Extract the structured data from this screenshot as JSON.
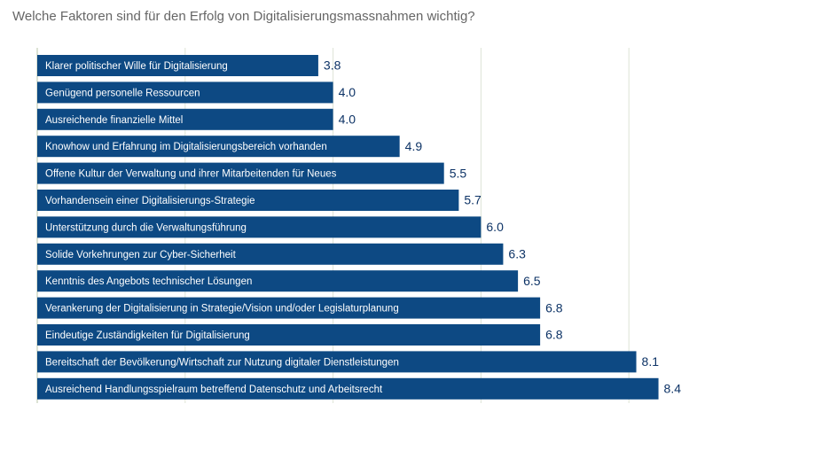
{
  "chart_data": {
    "type": "hbar",
    "title": "Welche Faktoren sind für den Erfolg von Digitalisierungsmassnahmen wichtig?",
    "categories": [
      "Klarer politischer Wille für Digitalisierung",
      "Genügend personelle Ressourcen",
      "Ausreichende finanzielle Mittel",
      "Knowhow und Erfahrung im Digitalisierungsbereich vorhanden",
      "Offene Kultur der Verwaltung und ihrer Mitarbeitenden für Neues",
      "Vorhandensein einer Digitalisierungs-Strategie",
      "Unterstützung durch die Verwaltungsführung",
      "Solide Vorkehrungen zur Cyber-Sicherheit",
      "Kenntnis des Angebots technischer Lösungen",
      "Verankerung der Digitalisierung in Strategie/Vision und/oder Legislaturplanung",
      "Eindeutige Zuständigkeiten für Digitalisierung",
      "Bereitschaft der Bevölkerung/Wirtschaft zur Nutzung digitaler Dienstleistungen",
      "Ausreichend Handlungsspielraum betreffend Datenschutz und Arbeitsrecht"
    ],
    "values": [
      3.8,
      4.0,
      4.0,
      4.9,
      5.5,
      5.7,
      6.0,
      6.3,
      6.5,
      6.8,
      6.8,
      8.1,
      8.4
    ],
    "value_labels": [
      "3.8",
      "4.0",
      "4.0",
      "4.9",
      "5.5",
      "5.7",
      "6.0",
      "6.3",
      "6.5",
      "6.8",
      "6.8",
      "8.1",
      "8.4"
    ],
    "color": "#0d4983",
    "xlim": [
      0,
      10
    ],
    "xticks": [
      0,
      2,
      4,
      6,
      8
    ],
    "grid": true
  }
}
